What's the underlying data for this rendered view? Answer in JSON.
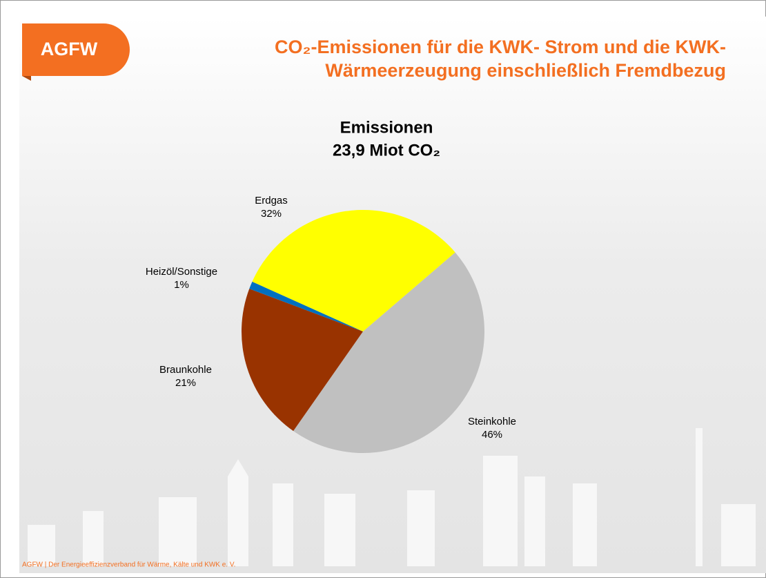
{
  "header": {
    "logo": "AGFW",
    "title_lines": [
      "CO₂-Emissionen für die KWK- Strom und die KWK-",
      "Wärmeerzeugung einschließlich Fremdbezug"
    ]
  },
  "chart_data": {
    "type": "pie",
    "title_lines": [
      "Emissionen",
      "23,9 Miot CO₂"
    ],
    "categories": [
      "Steinkohle",
      "Braunkohle",
      "Heizöl/Sonstige",
      "Erdgas"
    ],
    "values": [
      46,
      21,
      1,
      32
    ],
    "value_labels": [
      "46%",
      "21%",
      "1%",
      "32%"
    ],
    "colors": [
      "#c0c0c0",
      "#993300",
      "#0070c0",
      "#ffff00"
    ]
  },
  "footer": "AGFW | Der Energieeffizienzverband für Wärme, Kälte und KWK e. V."
}
